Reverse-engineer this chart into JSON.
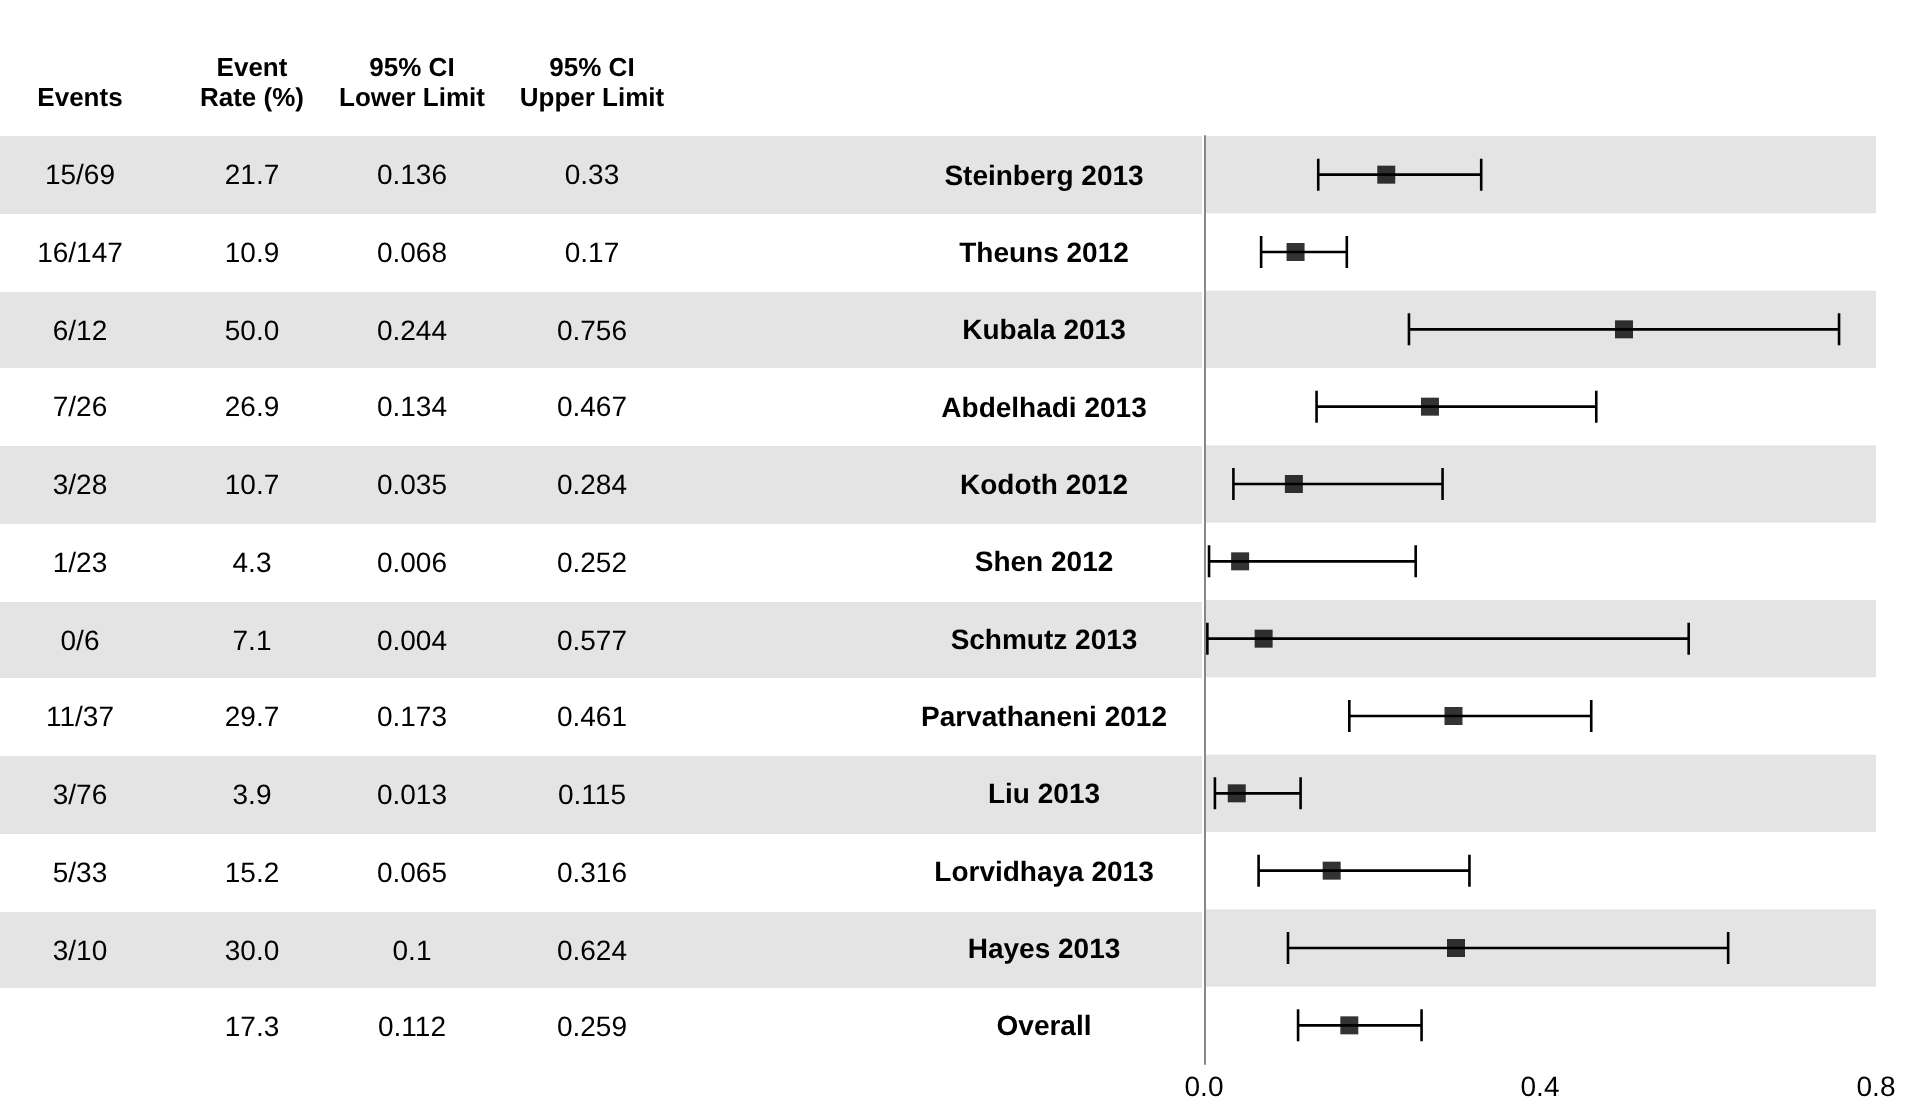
{
  "chart_data": [
    {
      "type": "other",
      "categories": [
        "Events",
        "Event Rate (%)",
        "95% CI Lower Limit",
        "95% CI Upper Limit"
      ],
      "cell_labels": [
        [
          "15/69",
          "21.7",
          "0.136",
          "0.33"
        ],
        [
          "16/147",
          "10.9",
          "0.068",
          "0.17"
        ],
        [
          "6/12",
          "50.0",
          "0.244",
          "0.756"
        ],
        [
          "7/26",
          "26.9",
          "0.134",
          "0.467"
        ],
        [
          "3/28",
          "10.7",
          "0.035",
          "0.284"
        ],
        [
          "1/23",
          "4.3",
          "0.006",
          "0.252"
        ],
        [
          "0/6",
          "7.1",
          "0.004",
          "0.577"
        ],
        [
          "11/37",
          "29.7",
          "0.173",
          "0.461"
        ],
        [
          "3/76",
          "3.9",
          "0.013",
          "0.115"
        ],
        [
          "5/33",
          "15.2",
          "0.065",
          "0.316"
        ],
        [
          "3/10",
          "30.0",
          "0.1",
          "0.624"
        ],
        [
          null,
          "17.3",
          "0.112",
          "0.259"
        ]
      ]
    },
    {
      "type": "scatter",
      "orientation": "horizontal",
      "marker": "square",
      "color": "#000000",
      "grid": false,
      "categories": [
        "Steinberg 2013",
        "Theuns 2012",
        "Kubala 2013",
        "Abdelhadi 2013",
        "Kodoth 2012",
        "Shen 2012",
        "Schmutz 2013",
        "Parvathaneni 2012",
        "Liu 2013",
        "Lorvidhaya 2013",
        "Hayes 2013",
        "Overall"
      ],
      "values": [
        0.217,
        0.109,
        0.5,
        0.269,
        0.107,
        0.043,
        0.071,
        0.297,
        0.039,
        0.152,
        0.3,
        0.173
      ],
      "errors": [
        [
          0.136,
          0.33
        ],
        [
          0.068,
          0.17
        ],
        [
          0.244,
          0.756
        ],
        [
          0.134,
          0.467
        ],
        [
          0.035,
          0.284
        ],
        [
          0.006,
          0.252
        ],
        [
          0.004,
          0.577
        ],
        [
          0.173,
          0.461
        ],
        [
          0.013,
          0.115
        ],
        [
          0.065,
          0.316
        ],
        [
          0.1,
          0.624
        ],
        [
          0.112,
          0.259
        ]
      ],
      "xlim": [
        0,
        0.8
      ],
      "xticks": [
        {
          "value": 0,
          "label": "0.0"
        },
        {
          "value": 0.4,
          "label": "0.4"
        },
        {
          "value": 0.8,
          "label": "0.8"
        }
      ]
    }
  ]
}
